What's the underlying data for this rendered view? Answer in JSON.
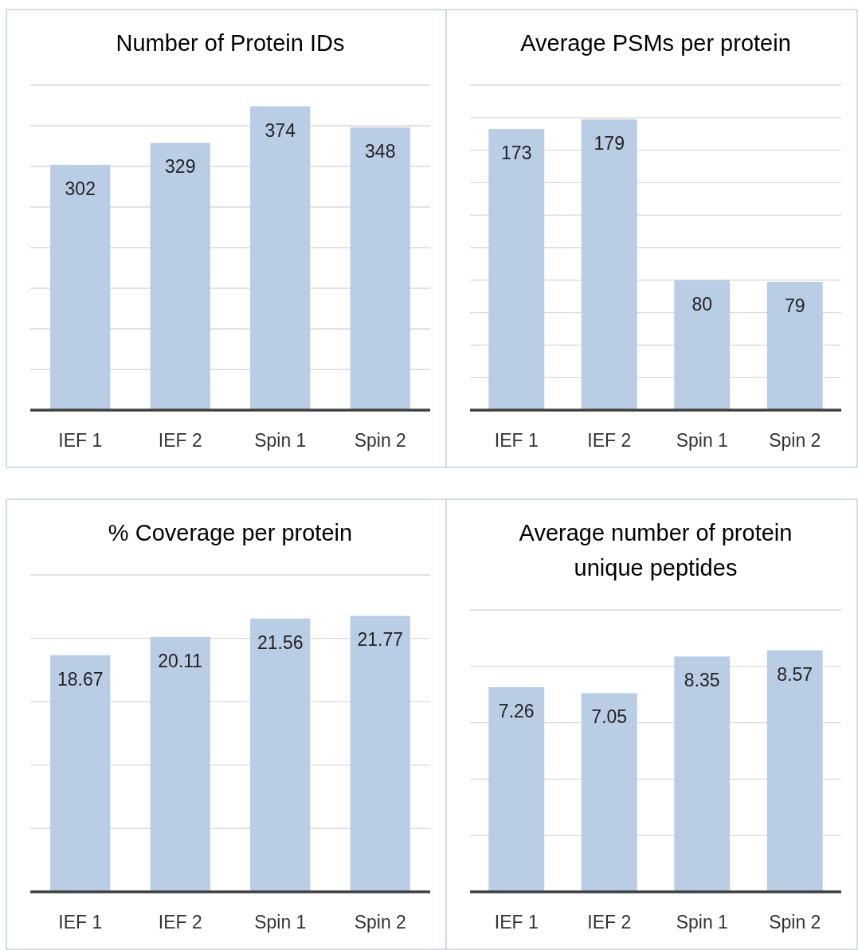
{
  "chart_data": [
    {
      "type": "bar",
      "title": "Number of Protein IDs",
      "categories": [
        "IEF 1",
        "IEF 2",
        "Spin 1",
        "Spin 2"
      ],
      "values": [
        302,
        329,
        374,
        348
      ],
      "color": "#b9cde5",
      "data_labels": true,
      "ylim": [
        0,
        400
      ],
      "yticks": [
        {
          "value": 0,
          "label": null
        },
        {
          "value": 50,
          "label": null
        },
        {
          "value": 100,
          "label": null
        },
        {
          "value": 150,
          "label": null
        },
        {
          "value": 200,
          "label": null
        },
        {
          "value": 250,
          "label": null
        },
        {
          "value": 300,
          "label": null
        },
        {
          "value": 350,
          "label": null
        },
        {
          "value": 400,
          "label": null
        }
      ],
      "grid": "y",
      "tick_labels": "x"
    },
    {
      "type": "bar",
      "title": "Average PSMs per protein",
      "categories": [
        "IEF 1",
        "IEF 2",
        "Spin 1",
        "Spin 2"
      ],
      "values": [
        173,
        179,
        80,
        79
      ],
      "color": "#b9cde5",
      "data_labels": true,
      "ylim": [
        0,
        200
      ],
      "yticks": [
        {
          "value": 0,
          "label": null
        },
        {
          "value": 20,
          "label": null
        },
        {
          "value": 40,
          "label": null
        },
        {
          "value": 60,
          "label": null
        },
        {
          "value": 80,
          "label": null
        },
        {
          "value": 100,
          "label": null
        },
        {
          "value": 120,
          "label": null
        },
        {
          "value": 140,
          "label": null
        },
        {
          "value": 160,
          "label": null
        },
        {
          "value": 180,
          "label": null
        },
        {
          "value": 200,
          "label": null
        }
      ],
      "grid": "y",
      "tick_labels": "x"
    },
    {
      "type": "bar",
      "title": "% Coverage per protein",
      "categories": [
        "IEF 1",
        "IEF 2",
        "Spin 1",
        "Spin 2"
      ],
      "values": [
        18.67,
        20.11,
        21.56,
        21.77
      ],
      "color": "#b9cde5",
      "data_labels": true,
      "ylim": [
        0,
        25
      ],
      "yticks": [
        {
          "value": 0,
          "label": null
        },
        {
          "value": 5,
          "label": null
        },
        {
          "value": 10,
          "label": null
        },
        {
          "value": 15,
          "label": null
        },
        {
          "value": 20,
          "label": null
        },
        {
          "value": 25,
          "label": null
        }
      ],
      "grid": "y",
      "tick_labels": "x"
    },
    {
      "type": "bar",
      "title": "Average number of protein unique peptides",
      "categories": [
        "IEF 1",
        "IEF 2",
        "Spin 1",
        "Spin 2"
      ],
      "values": [
        7.26,
        7.05,
        8.35,
        8.57
      ],
      "color": "#b9cde5",
      "data_labels": true,
      "ylim": [
        0,
        10
      ],
      "yticks": [
        {
          "value": 0,
          "label": null
        },
        {
          "value": 2,
          "label": null
        },
        {
          "value": 4,
          "label": null
        },
        {
          "value": 6,
          "label": null
        },
        {
          "value": 8,
          "label": null
        },
        {
          "value": 10,
          "label": null
        }
      ],
      "grid": "y",
      "tick_labels": "x"
    }
  ]
}
